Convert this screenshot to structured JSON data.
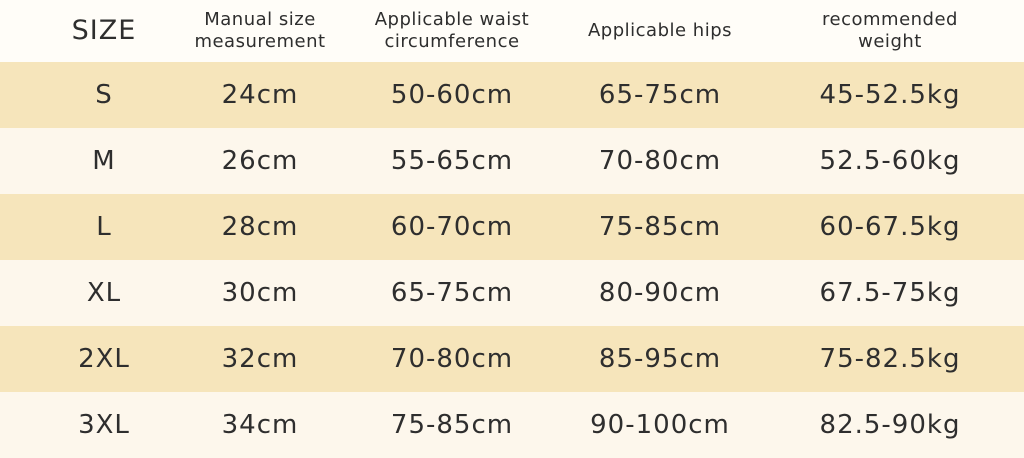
{
  "table": {
    "header": [
      [
        "SIZE"
      ],
      [
        "Manual size",
        "measurement"
      ],
      [
        "Applicable waist",
        "circumference"
      ],
      [
        "Applicable hips"
      ],
      [
        "recommended",
        "weight"
      ]
    ],
    "rows": [
      [
        "S",
        "24cm",
        "50-60cm",
        "65-75cm",
        "45-52.5kg"
      ],
      [
        "M",
        "26cm",
        "55-65cm",
        "70-80cm",
        "52.5-60kg"
      ],
      [
        "L",
        "28cm",
        "60-70cm",
        "75-85cm",
        "60-67.5kg"
      ],
      [
        "XL",
        "30cm",
        "65-75cm",
        "80-90cm",
        "67.5-75kg"
      ],
      [
        "2XL",
        "32cm",
        "70-80cm",
        "85-95cm",
        "75-82.5kg"
      ],
      [
        "3XL",
        "34cm",
        "75-85cm",
        "90-100cm",
        "82.5-90kg"
      ]
    ]
  }
}
